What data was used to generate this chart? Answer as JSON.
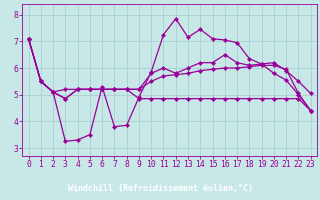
{
  "background_color": "#c8e8e8",
  "plot_bg_color": "#c8e8e8",
  "grid_color": "#a0cccc",
  "line_color": "#990099",
  "marker": "D",
  "markersize": 2.2,
  "linewidth": 0.9,
  "xlabel": "Windchill (Refroidissement éolien,°C)",
  "xlabel_fontsize": 6.0,
  "tick_fontsize": 5.8,
  "xlim": [
    -0.5,
    23.5
  ],
  "ylim": [
    2.7,
    8.4
  ],
  "yticks": [
    3,
    4,
    5,
    6,
    7,
    8
  ],
  "xticks": [
    0,
    1,
    2,
    3,
    4,
    5,
    6,
    7,
    8,
    9,
    10,
    11,
    12,
    13,
    14,
    15,
    16,
    17,
    18,
    19,
    20,
    21,
    22,
    23
  ],
  "series": [
    [
      7.1,
      5.5,
      5.1,
      4.85,
      5.2,
      5.2,
      5.2,
      5.2,
      5.2,
      5.2,
      5.8,
      6.0,
      5.8,
      6.0,
      6.2,
      6.2,
      6.5,
      6.2,
      6.1,
      6.15,
      6.2,
      5.9,
      5.5,
      5.05
    ],
    [
      7.1,
      5.5,
      5.1,
      3.25,
      3.3,
      3.5,
      5.3,
      3.8,
      3.85,
      4.9,
      5.85,
      7.25,
      7.85,
      7.15,
      7.45,
      7.1,
      7.05,
      6.95,
      6.35,
      6.15,
      5.8,
      5.55,
      5.0,
      4.4
    ],
    [
      7.1,
      5.5,
      5.1,
      5.2,
      5.2,
      5.2,
      5.2,
      5.2,
      5.2,
      5.2,
      5.5,
      5.7,
      5.75,
      5.8,
      5.9,
      5.95,
      6.0,
      6.0,
      6.05,
      6.1,
      6.1,
      5.95,
      5.05,
      4.4
    ],
    [
      7.1,
      5.5,
      5.1,
      4.85,
      5.2,
      5.2,
      5.2,
      5.2,
      5.2,
      4.85,
      4.85,
      4.85,
      4.85,
      4.85,
      4.85,
      4.85,
      4.85,
      4.85,
      4.85,
      4.85,
      4.85,
      4.85,
      4.85,
      4.4
    ]
  ],
  "xlabel_bar_color": "#550055",
  "xlabel_text_color": "#ffffff"
}
